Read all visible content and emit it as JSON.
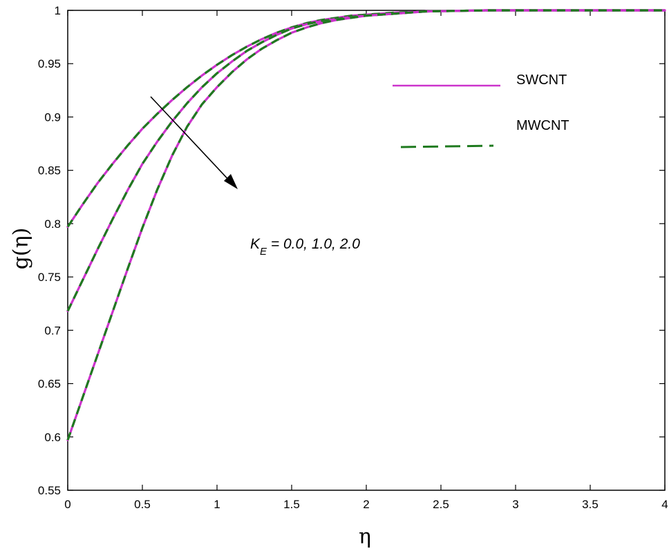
{
  "chart_data": {
    "type": "line",
    "xlabel": "η",
    "ylabel": "g(η)",
    "xlim": [
      0,
      4
    ],
    "ylim": [
      0.55,
      1
    ],
    "x_ticks": [
      "0",
      "0.5",
      "1",
      "1.5",
      "2",
      "2.5",
      "3",
      "3.5",
      "4"
    ],
    "y_ticks": [
      "0.55",
      "0.6",
      "0.65",
      "0.7",
      "0.75",
      "0.8",
      "0.85",
      "0.9",
      "0.95",
      "1"
    ],
    "grid": false,
    "legend": {
      "placement": "top-right",
      "entries": [
        {
          "label": "SWCNT",
          "color": "#cc33cc",
          "style": "solid"
        },
        {
          "label": "MWCNT",
          "color": "#1f7a1f",
          "style": "dashed"
        }
      ]
    },
    "annotation": {
      "symbol": "K",
      "subscript": "E",
      "text": " = 0.0, 1.0, 2.0",
      "arrow": "points in the direction of increasing K_E"
    },
    "x": [
      0,
      0.1,
      0.2,
      0.3,
      0.4,
      0.5,
      0.6,
      0.7,
      0.8,
      0.9,
      1.0,
      1.1,
      1.2,
      1.3,
      1.4,
      1.5,
      1.6,
      1.7,
      1.8,
      1.9,
      2.0,
      2.2,
      2.4,
      2.6,
      2.8,
      3.0,
      3.5,
      4.0
    ],
    "series": [
      {
        "group": "K_E = 0.0",
        "values": [
          0.797,
          0.818,
          0.838,
          0.856,
          0.873,
          0.889,
          0.903,
          0.916,
          0.928,
          0.939,
          0.949,
          0.958,
          0.966,
          0.973,
          0.979,
          0.984,
          0.988,
          0.991,
          0.993,
          0.995,
          0.996,
          0.998,
          0.999,
          0.9995,
          1.0,
          1.0,
          1.0,
          1.0
        ]
      },
      {
        "group": "K_E = 1.0",
        "values": [
          0.718,
          0.747,
          0.776,
          0.804,
          0.831,
          0.856,
          0.877,
          0.896,
          0.913,
          0.928,
          0.941,
          0.952,
          0.962,
          0.97,
          0.977,
          0.983,
          0.987,
          0.99,
          0.992,
          0.994,
          0.995,
          0.997,
          0.999,
          0.9995,
          1.0,
          1.0,
          1.0,
          1.0
        ]
      },
      {
        "group": "K_E = 2.0",
        "values": [
          0.597,
          0.637,
          0.677,
          0.717,
          0.757,
          0.796,
          0.832,
          0.864,
          0.891,
          0.912,
          0.928,
          0.942,
          0.954,
          0.964,
          0.972,
          0.979,
          0.984,
          0.988,
          0.991,
          0.993,
          0.995,
          0.997,
          0.999,
          0.9995,
          1.0,
          1.0,
          1.0,
          1.0
        ]
      }
    ]
  }
}
